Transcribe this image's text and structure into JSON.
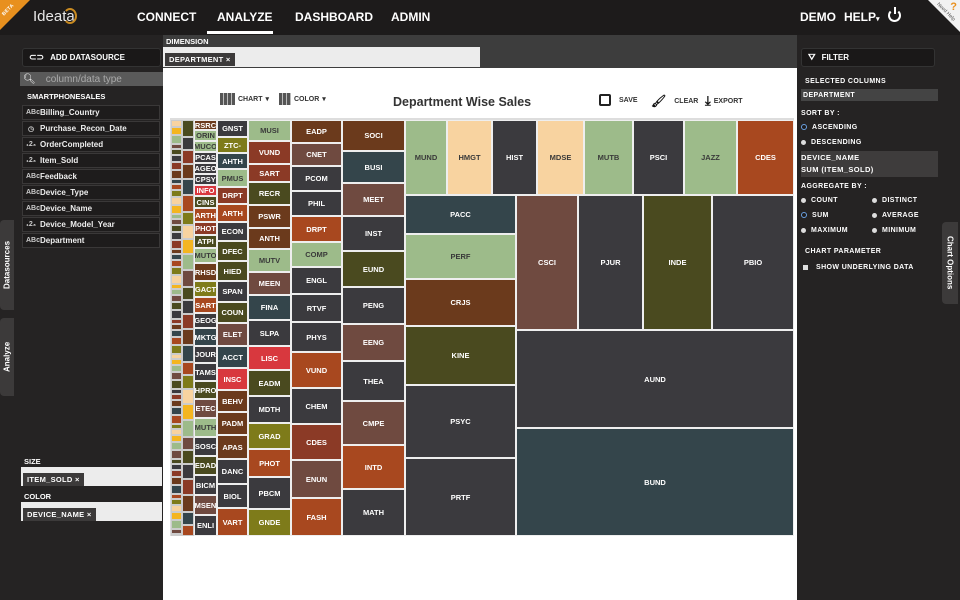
{
  "app": {
    "brand": "Ideata",
    "beta_badge": "BETA",
    "need_help": "Need Help",
    "need_help_mark": "?"
  },
  "nav": {
    "items": [
      "CONNECT",
      "ANALYZE",
      "DASHBOARD",
      "ADMIN"
    ],
    "active": "ANALYZE",
    "user": "DEMO",
    "help": "HELP"
  },
  "left": {
    "add_datasource": "ADD DATASOURCE",
    "search_placeholder": "column/data type",
    "datasource": "SMARTPHONESALES",
    "fields": [
      {
        "name": "Billing_Country",
        "icon": "Abc"
      },
      {
        "name": "Purchase_Recon_Date",
        "icon": "clock"
      },
      {
        "name": "OrderCompleted",
        "icon": "123"
      },
      {
        "name": "Item_Sold",
        "icon": "123"
      },
      {
        "name": "Feedback",
        "icon": "Abc"
      },
      {
        "name": "Device_Type",
        "icon": "Abc"
      },
      {
        "name": "Device_Name",
        "icon": "Abc"
      },
      {
        "name": "Device_Model_Year",
        "icon": "123"
      },
      {
        "name": "Department",
        "icon": "Abc"
      }
    ],
    "tabs": [
      "Datasources",
      "Analyze"
    ],
    "size_label": "SIZE",
    "size_value": "ITEM_SOLD",
    "color_label": "COLOR",
    "color_value": "DEVICE_NAME",
    "remove": "×"
  },
  "center": {
    "dimension_label": "DIMENSION",
    "dimension_value": "DEPARTMENT",
    "chart_btn": "CHART",
    "color_btn": "COLOR",
    "title": "Department Wise Sales",
    "save": "SAVE",
    "clear": "CLEAR",
    "export": "EXPORT"
  },
  "right": {
    "filter": "FILTER",
    "selected_columns": "SELECTED COLUMNS",
    "column": "DEPARTMENT",
    "sort_by": "SORT BY :",
    "ascending": "ASCENDING",
    "descending": "DESCENDING",
    "sort_selected": "ASCENDING",
    "measure_dim": "DEVICE_NAME",
    "measure": "SUM (ITEM_SOLD)",
    "aggregate_by": "AGGREGATE BY :",
    "aggregates": [
      "COUNT",
      "DISTINCT",
      "SUM",
      "AVERAGE",
      "MAXIMUM",
      "MINIMUM"
    ],
    "aggregate_selected": "SUM",
    "chart_parameter": "CHART PARAMETER",
    "show_underlying": "SHOW UNDERLYING DATA",
    "chart_options_tab": "Chart Options"
  },
  "palette": {
    "dark": "#3b3a3e",
    "slate": "#34454b",
    "brown": "#6b3a1c",
    "rust": "#a8481f",
    "redbrown": "#8b3a26",
    "olivedark": "#4a4a1f",
    "olive": "#7e7b1a",
    "sage": "#9dbb8a",
    "peach": "#f8d3a0",
    "red": "#d8383e",
    "mauve": "#6f4a40",
    "yellow": "#f4b520"
  },
  "chart_data": {
    "type": "treemap",
    "title": "Department Wise Sales",
    "size": "SUM (ITEM_SOLD)",
    "color": "DEVICE_NAME",
    "tiles": [
      [
        "RSRC",
        "brown"
      ],
      [
        "ORIN",
        "sage"
      ],
      [
        "MUCO",
        "sage"
      ],
      [
        "PCAS",
        "dark"
      ],
      [
        "AGEO",
        "dark"
      ],
      [
        "CPSY",
        "dark"
      ],
      [
        "INFO",
        "red"
      ],
      [
        "CINS",
        "olivedark"
      ],
      [
        "ARTH",
        "rust"
      ],
      [
        "PHOT",
        "redbrown"
      ],
      [
        "ATPI",
        "olivedark"
      ],
      [
        "MUTO",
        "sage"
      ],
      [
        "RHSD",
        "brown"
      ],
      [
        "GACT",
        "olive"
      ],
      [
        "SART",
        "rust"
      ],
      [
        "GEOG",
        "dark"
      ],
      [
        "MKTG",
        "slate"
      ],
      [
        "JOUR",
        "dark"
      ],
      [
        "TAMS",
        "dark"
      ],
      [
        "HPRO",
        "olivedark"
      ],
      [
        "ETEC",
        "mauve"
      ],
      [
        "MUTH",
        "sage"
      ],
      [
        "SOSC",
        "dark"
      ],
      [
        "EDAD",
        "olivedark"
      ],
      [
        "BICM",
        "dark"
      ],
      [
        "MSEN",
        "mauve"
      ],
      [
        "ENLI",
        "dark"
      ],
      [
        "GNST",
        "dark"
      ],
      [
        "ZTC-",
        "olive"
      ],
      [
        "AHTH",
        "slate"
      ],
      [
        "PMUS",
        "sage"
      ],
      [
        "DRPT",
        "redbrown"
      ],
      [
        "ARTH",
        "rust"
      ],
      [
        "ECON",
        "dark"
      ],
      [
        "DFEC",
        "olivedark"
      ],
      [
        "HIED",
        "olivedark"
      ],
      [
        "SPAN",
        "dark"
      ],
      [
        "COUN",
        "olivedark"
      ],
      [
        "ELET",
        "mauve"
      ],
      [
        "ACCT",
        "slate"
      ],
      [
        "INSC",
        "red"
      ],
      [
        "BEHV",
        "brown"
      ],
      [
        "PADM",
        "brown"
      ],
      [
        "APAS",
        "brown"
      ],
      [
        "DANC",
        "dark"
      ],
      [
        "BIOL",
        "dark"
      ],
      [
        "VART",
        "rust"
      ],
      [
        "MUSI",
        "sage"
      ],
      [
        "VUND",
        "redbrown"
      ],
      [
        "SART",
        "redbrown"
      ],
      [
        "RECR",
        "olivedark"
      ],
      [
        "PSWR",
        "brown"
      ],
      [
        "ANTH",
        "brown"
      ],
      [
        "MUTV",
        "sage"
      ],
      [
        "MEEN",
        "mauve"
      ],
      [
        "FINA",
        "slate"
      ],
      [
        "SLPA",
        "dark"
      ],
      [
        "LISC",
        "red"
      ],
      [
        "EADM",
        "olivedark"
      ],
      [
        "MDTH",
        "dark"
      ],
      [
        "GRAD",
        "olive"
      ],
      [
        "PHOT",
        "rust"
      ],
      [
        "PBCM",
        "dark"
      ],
      [
        "GNDE",
        "olive"
      ],
      [
        "EADP",
        "brown"
      ],
      [
        "CNET",
        "mauve"
      ],
      [
        "PCOM",
        "dark"
      ],
      [
        "PHIL",
        "dark"
      ],
      [
        "DRPT",
        "rust"
      ],
      [
        "COMP",
        "sage"
      ],
      [
        "ENGL",
        "dark"
      ],
      [
        "RTVF",
        "dark"
      ],
      [
        "PHYS",
        "dark"
      ],
      [
        "VUND",
        "rust"
      ],
      [
        "CHEM",
        "dark"
      ],
      [
        "CDES",
        "redbrown"
      ],
      [
        "ENUN",
        "mauve"
      ],
      [
        "FASH",
        "rust"
      ],
      [
        "SOCI",
        "brown"
      ],
      [
        "BUSI",
        "slate"
      ],
      [
        "MEET",
        "mauve"
      ],
      [
        "INST",
        "dark"
      ],
      [
        "EUND",
        "olivedark"
      ],
      [
        "PENG",
        "dark"
      ],
      [
        "EENG",
        "mauve"
      ],
      [
        "THEA",
        "dark"
      ],
      [
        "CMPE",
        "mauve"
      ],
      [
        "INTD",
        "rust"
      ],
      [
        "MATH",
        "dark"
      ],
      [
        "MUND",
        "sage"
      ],
      [
        "HMGT",
        "peach"
      ],
      [
        "HIST",
        "dark"
      ],
      [
        "MDSE",
        "peach"
      ],
      [
        "MUTB",
        "sage"
      ],
      [
        "PSCI",
        "dark"
      ],
      [
        "JAZZ",
        "sage"
      ],
      [
        "CDES",
        "rust"
      ],
      [
        "PACC",
        "slate"
      ],
      [
        "PERF",
        "sage"
      ],
      [
        "CRJS",
        "brown"
      ],
      [
        "KINE",
        "olivedark"
      ],
      [
        "PSYC",
        "dark"
      ],
      [
        "PRTF",
        "dark"
      ],
      [
        "CSCI",
        "mauve"
      ],
      [
        "PJUR",
        "dark"
      ],
      [
        "INDE",
        "olivedark"
      ],
      [
        "PBIO",
        "dark"
      ],
      [
        "AUND",
        "dark"
      ],
      [
        "BUND",
        "slate"
      ]
    ],
    "minor_tile_colors": [
      "brown",
      "peach",
      "olivedark",
      "slate",
      "yellow",
      "dark",
      "rust",
      "sage",
      "redbrown",
      "olive",
      "mauve"
    ]
  }
}
